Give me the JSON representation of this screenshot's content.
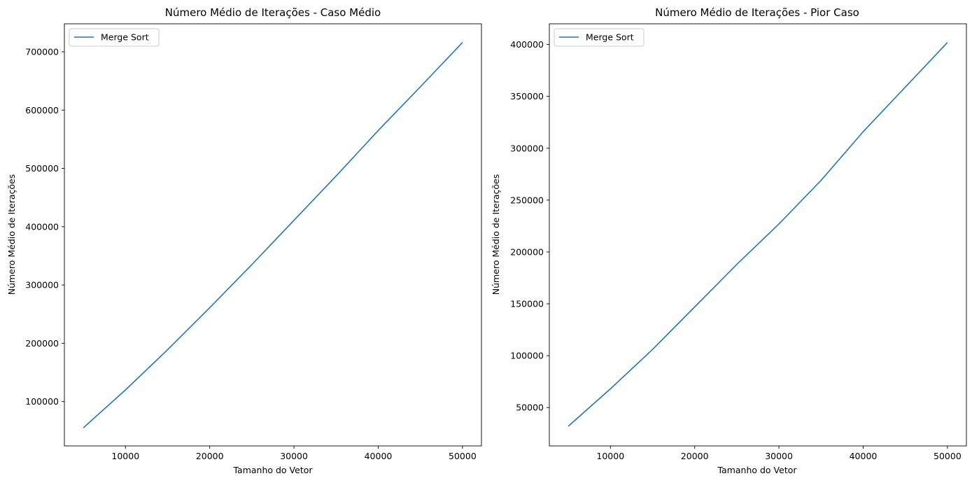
{
  "chart_data": [
    {
      "type": "line",
      "title": "Número Médio de Iterações - Caso Médio",
      "xlabel": "Tamanho do Vetor",
      "ylabel": "Número Médio de Iterações",
      "xlim": [
        2750,
        52250
      ],
      "ylim": [
        24000,
        748000
      ],
      "xticks": [
        10000,
        20000,
        30000,
        40000,
        50000
      ],
      "yticks": [
        100000,
        200000,
        300000,
        400000,
        500000,
        600000,
        700000
      ],
      "legend_position": "upper-left",
      "grid": false,
      "series": [
        {
          "name": "Merge Sort",
          "color": "#1f77b4",
          "x": [
            5000,
            10000,
            15000,
            20000,
            25000,
            30000,
            35000,
            40000,
            45000,
            50000
          ],
          "y": [
            55000,
            120000,
            189000,
            261000,
            335000,
            411000,
            487000,
            565000,
            640000,
            716000
          ]
        }
      ]
    },
    {
      "type": "line",
      "title": "Número Médio de Iterações - Pior Caso",
      "xlabel": "Tamanho do Vetor",
      "ylabel": "Número Médio de Iterações",
      "xlim": [
        2750,
        52250
      ],
      "ylim": [
        13000,
        420000
      ],
      "xticks": [
        10000,
        20000,
        30000,
        40000,
        50000
      ],
      "yticks": [
        50000,
        100000,
        150000,
        200000,
        250000,
        300000,
        350000,
        400000
      ],
      "legend_position": "upper-left",
      "grid": false,
      "series": [
        {
          "name": "Merge Sort",
          "color": "#1f77b4",
          "x": [
            5000,
            10000,
            15000,
            20000,
            25000,
            30000,
            35000,
            40000,
            45000,
            50000
          ],
          "y": [
            32000,
            68000,
            106000,
            147000,
            188000,
            227000,
            269000,
            316000,
            359000,
            402000
          ]
        }
      ]
    }
  ]
}
